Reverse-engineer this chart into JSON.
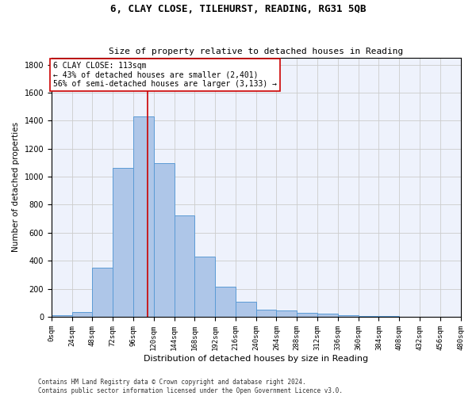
{
  "title": "6, CLAY CLOSE, TILEHURST, READING, RG31 5QB",
  "subtitle": "Size of property relative to detached houses in Reading",
  "xlabel": "Distribution of detached houses by size in Reading",
  "ylabel": "Number of detached properties",
  "bin_edges": [
    0,
    24,
    48,
    72,
    96,
    120,
    144,
    168,
    192,
    216,
    240,
    264,
    288,
    312,
    336,
    360,
    384,
    408,
    432,
    456,
    480
  ],
  "bar_heights": [
    10,
    35,
    350,
    1060,
    1430,
    1095,
    725,
    430,
    215,
    105,
    50,
    45,
    30,
    20,
    10,
    5,
    3,
    1,
    1,
    0
  ],
  "bar_color": "#aec6e8",
  "bar_edgecolor": "#5b9bd5",
  "property_size": 113,
  "vline_color": "#cc0000",
  "annotation_line1": "6 CLAY CLOSE: 113sqm",
  "annotation_line2": "← 43% of detached houses are smaller (2,401)",
  "annotation_line3": "56% of semi-detached houses are larger (3,133) →",
  "annotation_box_edgecolor": "#cc0000",
  "grid_color": "#cccccc",
  "background_color": "#eef2fc",
  "ylim": [
    0,
    1850
  ],
  "yticks": [
    0,
    200,
    400,
    600,
    800,
    1000,
    1200,
    1400,
    1600,
    1800
  ],
  "footer_line1": "Contains HM Land Registry data © Crown copyright and database right 2024.",
  "footer_line2": "Contains public sector information licensed under the Open Government Licence v3.0.",
  "title_fontsize": 9,
  "subtitle_fontsize": 8,
  "xlabel_fontsize": 8,
  "ylabel_fontsize": 7.5,
  "tick_fontsize": 6.5,
  "ytick_fontsize": 7,
  "annot_fontsize": 7,
  "footer_fontsize": 5.5
}
